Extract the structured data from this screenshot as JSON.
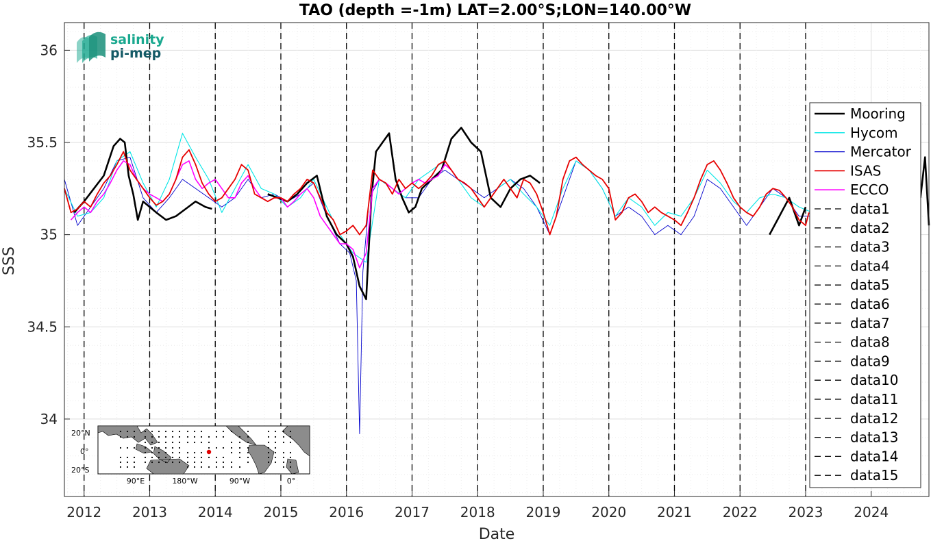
{
  "chart_data": {
    "type": "line",
    "title": "TAO (depth =-1m) LAT=2.00°S;LON=140.00°W",
    "xlabel": "Date",
    "ylabel": "SSS",
    "xlim": [
      2011.7,
      2024.88
    ],
    "ylim": [
      33.58,
      36.15
    ],
    "yticks": [
      34,
      34.5,
      35,
      35.5,
      36
    ],
    "ytick_labels": [
      "34",
      "34.5",
      "35",
      "35.5",
      "36"
    ],
    "xticks": [
      2012,
      2013,
      2014,
      2015,
      2016,
      2017,
      2018,
      2019,
      2020,
      2021,
      2022,
      2023,
      2024
    ],
    "xtick_labels": [
      "2012",
      "2013",
      "2014",
      "2015",
      "2016",
      "2017",
      "2018",
      "2019",
      "2020",
      "2021",
      "2022",
      "2023",
      "2024"
    ],
    "grid": true,
    "legend_position": "right",
    "vlines": [
      2012.0,
      2013.0,
      2014.0,
      2015.0,
      2016.0,
      2017.0,
      2018.0,
      2019.0,
      2020.0,
      2021.0,
      2022.0,
      2023.0
    ],
    "series": [
      {
        "name": "Mooring",
        "color": "#000000",
        "x": [
          2011.85,
          2012.0,
          2012.15,
          2012.3,
          2012.45,
          2012.55,
          2012.62,
          2012.68,
          2012.75,
          2012.82,
          2012.9,
          2013.1,
          2013.25,
          2013.4,
          2013.55,
          2013.7,
          2013.85,
          2013.95,
          2014.8,
          2014.95,
          2015.1,
          2015.25,
          2015.4,
          2015.55,
          2015.7,
          2015.85,
          2016.0,
          2016.1,
          2016.2,
          2016.3,
          2016.38,
          2016.45,
          2016.55,
          2016.65,
          2016.75,
          2016.85,
          2016.95,
          2017.05,
          2017.15,
          2017.3,
          2017.45,
          2017.6,
          2017.75,
          2017.9,
          2018.05,
          2018.2,
          2018.35,
          2018.5,
          2018.65,
          2018.8,
          2018.95,
          2022.45,
          2022.6,
          2022.75,
          2022.9,
          2023.0,
          2024.75,
          2024.82,
          2024.88
        ],
        "y": [
          35.12,
          35.18,
          35.25,
          35.32,
          35.48,
          35.52,
          35.5,
          35.32,
          35.22,
          35.08,
          35.18,
          35.12,
          35.08,
          35.1,
          35.14,
          35.18,
          35.15,
          35.14,
          35.22,
          35.2,
          35.18,
          35.22,
          35.28,
          35.32,
          35.1,
          35.0,
          34.95,
          34.88,
          34.72,
          34.65,
          35.2,
          35.45,
          35.5,
          35.55,
          35.3,
          35.2,
          35.12,
          35.15,
          35.25,
          35.3,
          35.35,
          35.52,
          35.58,
          35.5,
          35.45,
          35.2,
          35.15,
          35.25,
          35.3,
          35.32,
          35.28,
          35.0,
          35.1,
          35.2,
          35.05,
          35.15,
          35.2,
          35.42,
          35.05
        ]
      },
      {
        "name": "Hycom",
        "color": "#00e6e6",
        "x": [
          2011.7,
          2011.9,
          2012.1,
          2012.3,
          2012.5,
          2012.7,
          2012.9,
          2013.1,
          2013.3,
          2013.5,
          2013.7,
          2013.9,
          2014.1,
          2014.3,
          2014.5,
          2014.7,
          2014.9,
          2015.1,
          2015.3,
          2015.5,
          2015.7,
          2015.9,
          2016.1,
          2016.3,
          2016.5,
          2016.7,
          2016.9,
          2017.1,
          2017.3,
          2017.5,
          2017.7,
          2017.9,
          2018.1,
          2018.3,
          2018.5,
          2018.7,
          2018.9,
          2019.1,
          2019.3,
          2019.5,
          2019.7,
          2019.9,
          2020.1,
          2020.3,
          2020.5,
          2020.7,
          2020.9,
          2021.1,
          2021.3,
          2021.5,
          2021.7,
          2021.9,
          2022.1,
          2022.3,
          2022.5,
          2022.7,
          2022.9,
          2023.1
        ],
        "y": [
          35.25,
          35.1,
          35.12,
          35.2,
          35.4,
          35.45,
          35.28,
          35.15,
          35.3,
          35.55,
          35.42,
          35.3,
          35.12,
          35.25,
          35.38,
          35.25,
          35.22,
          35.15,
          35.2,
          35.3,
          35.15,
          35.0,
          34.9,
          34.85,
          35.3,
          35.25,
          35.2,
          35.3,
          35.35,
          35.4,
          35.3,
          35.2,
          35.15,
          35.25,
          35.3,
          35.22,
          35.15,
          35.05,
          35.25,
          35.4,
          35.35,
          35.25,
          35.1,
          35.2,
          35.15,
          35.05,
          35.12,
          35.1,
          35.2,
          35.35,
          35.28,
          35.18,
          35.12,
          35.2,
          35.22,
          35.2,
          35.15,
          35.12
        ]
      },
      {
        "name": "Mercator",
        "color": "#0000cc",
        "x": [
          2011.7,
          2011.9,
          2012.1,
          2012.3,
          2012.5,
          2012.7,
          2012.9,
          2013.1,
          2013.3,
          2013.5,
          2013.7,
          2013.9,
          2014.1,
          2014.3,
          2014.5,
          2014.7,
          2014.9,
          2015.1,
          2015.3,
          2015.5,
          2015.7,
          2015.9,
          2016.05,
          2016.15,
          2016.2,
          2016.25,
          2016.35,
          2016.5,
          2016.7,
          2016.9,
          2017.1,
          2017.3,
          2017.5,
          2017.7,
          2017.9,
          2018.1,
          2018.3,
          2018.5,
          2018.7,
          2018.9,
          2019.1,
          2019.3,
          2019.5,
          2019.7,
          2019.9,
          2020.1,
          2020.3,
          2020.5,
          2020.7,
          2020.9,
          2021.1,
          2021.3,
          2021.5,
          2021.7,
          2021.9,
          2022.1,
          2022.3,
          2022.5,
          2022.7,
          2022.9,
          2023.1
        ],
        "y": [
          35.3,
          35.05,
          35.15,
          35.25,
          35.4,
          35.42,
          35.2,
          35.12,
          35.2,
          35.3,
          35.25,
          35.2,
          35.15,
          35.2,
          35.3,
          35.2,
          35.22,
          35.18,
          35.22,
          35.28,
          35.1,
          34.95,
          34.9,
          34.75,
          33.92,
          34.8,
          35.2,
          35.3,
          35.25,
          35.2,
          35.2,
          35.3,
          35.35,
          35.3,
          35.25,
          35.2,
          35.25,
          35.3,
          35.25,
          35.15,
          35.0,
          35.2,
          35.4,
          35.35,
          35.25,
          35.1,
          35.15,
          35.1,
          35.0,
          35.05,
          35.0,
          35.1,
          35.3,
          35.25,
          35.15,
          35.05,
          35.15,
          35.25,
          35.2,
          35.1,
          35.1
        ]
      },
      {
        "name": "ISAS",
        "color": "#e60000",
        "x": [
          2011.7,
          2011.8,
          2011.9,
          2012.0,
          2012.1,
          2012.2,
          2012.3,
          2012.4,
          2012.5,
          2012.6,
          2012.7,
          2012.8,
          2012.9,
          2013.0,
          2013.1,
          2013.2,
          2013.3,
          2013.4,
          2013.5,
          2013.6,
          2013.7,
          2013.8,
          2013.9,
          2014.0,
          2014.1,
          2014.2,
          2014.3,
          2014.4,
          2014.5,
          2014.6,
          2014.7,
          2014.8,
          2014.9,
          2015.0,
          2015.1,
          2015.2,
          2015.3,
          2015.4,
          2015.5,
          2015.6,
          2015.7,
          2015.8,
          2015.9,
          2016.0,
          2016.1,
          2016.2,
          2016.3,
          2016.4,
          2016.5,
          2016.6,
          2016.7,
          2016.8,
          2016.9,
          2017.0,
          2017.1,
          2017.2,
          2017.3,
          2017.4,
          2017.5,
          2017.6,
          2017.7,
          2017.8,
          2017.9,
          2018.0,
          2018.1,
          2018.2,
          2018.3,
          2018.4,
          2018.5,
          2018.6,
          2018.7,
          2018.8,
          2018.9,
          2019.0,
          2019.1,
          2019.2,
          2019.3,
          2019.4,
          2019.5,
          2019.6,
          2019.7,
          2019.8,
          2019.9,
          2020.0,
          2020.1,
          2020.2,
          2020.3,
          2020.4,
          2020.5,
          2020.6,
          2020.7,
          2020.8,
          2020.9,
          2021.0,
          2021.1,
          2021.2,
          2021.3,
          2021.4,
          2021.5,
          2021.6,
          2021.7,
          2021.8,
          2021.9,
          2022.0,
          2022.1,
          2022.2,
          2022.3,
          2022.4,
          2022.5,
          2022.6,
          2022.7,
          2022.8,
          2022.9,
          2023.0,
          2023.05
        ],
        "y": [
          35.25,
          35.12,
          35.14,
          35.18,
          35.15,
          35.22,
          35.28,
          35.32,
          35.38,
          35.45,
          35.35,
          35.3,
          35.25,
          35.2,
          35.16,
          35.18,
          35.22,
          35.3,
          35.42,
          35.46,
          35.38,
          35.28,
          35.22,
          35.18,
          35.2,
          35.25,
          35.3,
          35.38,
          35.35,
          35.22,
          35.2,
          35.18,
          35.2,
          35.2,
          35.18,
          35.22,
          35.25,
          35.3,
          35.28,
          35.2,
          35.12,
          35.08,
          35.0,
          35.02,
          35.05,
          35.0,
          35.05,
          35.35,
          35.3,
          35.28,
          35.22,
          35.3,
          35.25,
          35.28,
          35.25,
          35.28,
          35.32,
          35.38,
          35.4,
          35.35,
          35.3,
          35.28,
          35.25,
          35.2,
          35.15,
          35.2,
          35.25,
          35.3,
          35.25,
          35.2,
          35.3,
          35.28,
          35.22,
          35.12,
          35.0,
          35.1,
          35.3,
          35.4,
          35.42,
          35.38,
          35.35,
          35.32,
          35.3,
          35.25,
          35.08,
          35.12,
          35.2,
          35.22,
          35.18,
          35.12,
          35.15,
          35.12,
          35.1,
          35.08,
          35.05,
          35.12,
          35.2,
          35.3,
          35.38,
          35.4,
          35.35,
          35.28,
          35.2,
          35.15,
          35.12,
          35.1,
          35.15,
          35.22,
          35.25,
          35.24,
          35.2,
          35.15,
          35.08,
          35.05,
          35.12
        ]
      },
      {
        "name": "ECCO",
        "color": "#ff00ff",
        "x": [
          2011.8,
          2011.9,
          2012.0,
          2012.1,
          2012.2,
          2012.3,
          2012.4,
          2012.5,
          2012.6,
          2012.7,
          2012.8,
          2012.9,
          2013.0,
          2013.1,
          2013.2,
          2013.3,
          2013.4,
          2013.5,
          2013.6,
          2013.7,
          2013.8,
          2013.9,
          2014.0,
          2014.1,
          2014.2,
          2014.3,
          2014.4,
          2014.5,
          2014.6,
          2014.7,
          2014.8,
          2014.9,
          2015.0,
          2015.1,
          2015.2,
          2015.3,
          2015.4,
          2015.5,
          2015.6,
          2015.7,
          2015.8,
          2015.9,
          2016.0,
          2016.1,
          2016.2,
          2016.3,
          2016.4,
          2016.5,
          2016.6,
          2016.7,
          2016.8,
          2016.9,
          2017.0,
          2017.1,
          2017.2,
          2017.3,
          2017.4,
          2017.5,
          2017.6,
          2017.7,
          2017.8,
          2017.9
        ],
        "y": [
          35.08,
          35.12,
          35.15,
          35.12,
          35.18,
          35.22,
          35.28,
          35.35,
          35.4,
          35.38,
          35.3,
          35.25,
          35.22,
          35.2,
          35.18,
          35.22,
          35.3,
          35.38,
          35.4,
          35.3,
          35.25,
          35.28,
          35.3,
          35.25,
          35.2,
          35.2,
          35.28,
          35.32,
          35.25,
          35.2,
          35.18,
          35.2,
          35.2,
          35.15,
          35.18,
          35.22,
          35.25,
          35.2,
          35.1,
          35.05,
          35.0,
          34.95,
          34.95,
          34.92,
          34.82,
          34.9,
          35.25,
          35.3,
          35.28,
          35.25,
          35.22,
          35.25,
          35.28,
          35.3,
          35.28,
          35.3,
          35.32,
          35.38,
          35.35,
          35.3,
          35.28,
          35.25
        ]
      }
    ],
    "legend": [
      "Mooring",
      "Hycom",
      "Mercator",
      "ISAS",
      "ECCO",
      "data1",
      "data2",
      "data3",
      "data4",
      "data5",
      "data6",
      "data7",
      "data8",
      "data9",
      "data10",
      "data11",
      "data12",
      "data13",
      "data14",
      "data15"
    ]
  },
  "logo": {
    "line1": "salinity",
    "line2": "pi-mep"
  },
  "inset_map": {
    "lat_labels": [
      "20°N",
      "0°",
      "20°S"
    ],
    "lon_labels": [
      "90°E",
      "180°W",
      "90°W",
      "0°"
    ]
  }
}
